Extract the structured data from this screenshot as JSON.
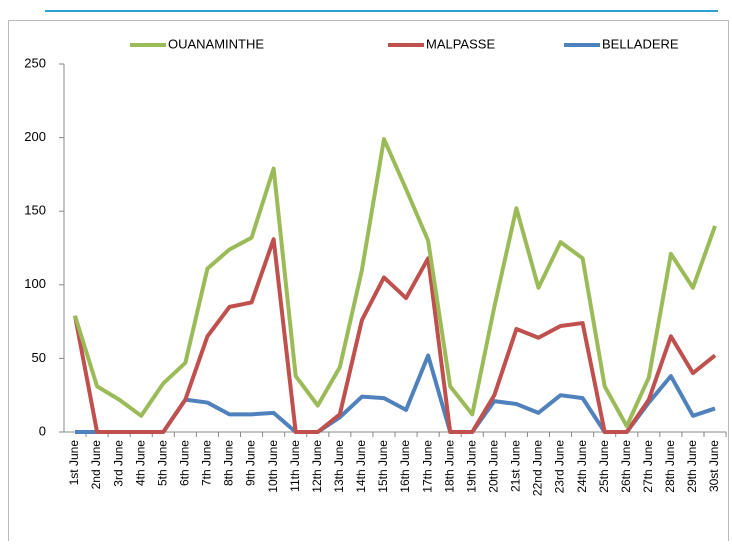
{
  "chart_data": {
    "type": "line",
    "categories": [
      "1st June",
      "2nd June",
      "3rd June",
      "4th June",
      "5th June",
      "6th June",
      "7th June",
      "8th June",
      "9th June",
      "10th June",
      "11th June",
      "12th June",
      "13th June",
      "14th June",
      "15th June",
      "16th June",
      "17th June",
      "18th June",
      "19th June",
      "20th June",
      "21st June",
      "22nd June",
      "23rd June",
      "24th June",
      "25th June",
      "26th June",
      "27th June",
      "28th June",
      "29th June",
      "30st June"
    ],
    "series": [
      {
        "name": "OUANAMINTHE",
        "color": "#9bbb59",
        "values": [
          79,
          31,
          22,
          11,
          33,
          47,
          111,
          124,
          132,
          179,
          38,
          18,
          44,
          110,
          199,
          165,
          130,
          31,
          12,
          85,
          152,
          98,
          129,
          118,
          31,
          4,
          37,
          121,
          98,
          140
        ]
      },
      {
        "name": "MALPASSE",
        "color": "#c0504d",
        "values": [
          79,
          0,
          0,
          0,
          0,
          22,
          65,
          85,
          88,
          131,
          0,
          0,
          12,
          76,
          105,
          91,
          118,
          0,
          0,
          25,
          70,
          64,
          72,
          74,
          0,
          0,
          22,
          65,
          40,
          52
        ]
      },
      {
        "name": "BELLADERE",
        "color": "#4f81bd",
        "values": [
          0,
          0,
          0,
          0,
          0,
          22,
          20,
          12,
          12,
          13,
          0,
          0,
          10,
          24,
          23,
          15,
          52,
          0,
          0,
          21,
          19,
          13,
          25,
          23,
          0,
          0,
          20,
          38,
          11,
          16
        ]
      }
    ],
    "ylim": [
      0,
      250
    ],
    "yticks": [
      0,
      50,
      100,
      150,
      200,
      250
    ],
    "grid": false,
    "legend": "top"
  }
}
